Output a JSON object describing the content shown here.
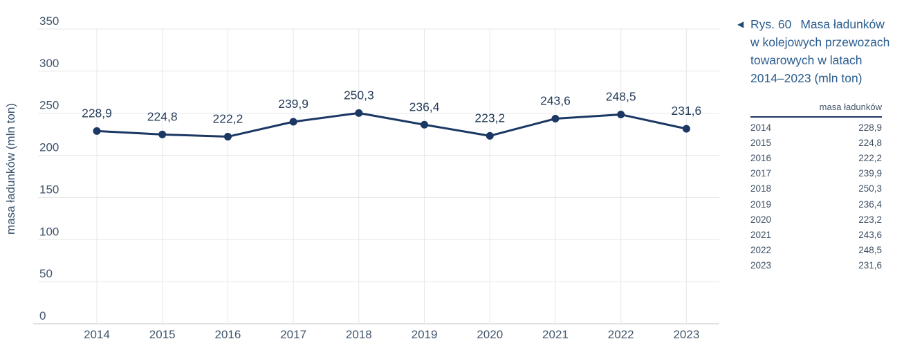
{
  "figure": {
    "marker": "◀",
    "label": "Rys. 60",
    "title": "Masa ładunków w kolejowych przewozach towarowych w latach 2014–2023 (mln ton)"
  },
  "table": {
    "header": "masa ładunków"
  },
  "chart_data": {
    "type": "line",
    "title": "Masa ładunków w kolejowych przewozach towarowych w latach 2014–2023 (mln ton)",
    "categories": [
      "2014",
      "2015",
      "2016",
      "2017",
      "2018",
      "2019",
      "2020",
      "2021",
      "2022",
      "2023"
    ],
    "values": [
      228.9,
      224.8,
      222.2,
      239.9,
      250.3,
      236.4,
      223.2,
      243.6,
      248.5,
      231.6
    ],
    "value_labels": [
      "228,9",
      "224,8",
      "222,2",
      "239,9",
      "250,3",
      "236,4",
      "223,2",
      "243,6",
      "248,5",
      "231,6"
    ],
    "series_name": "masa ładunków",
    "xlabel": "",
    "ylabel": "masa ładunków (mln ton)",
    "ylim": [
      0,
      350
    ],
    "yticks": [
      0,
      50,
      100,
      150,
      200,
      250,
      300,
      350
    ],
    "grid": true,
    "legend": false,
    "colors": {
      "line": "#1b3764",
      "point": "#1b3764",
      "data_label": "#263d5a",
      "tick_label": "#42566c",
      "axis_title": "#35506b",
      "gridline": "#e4e7ea",
      "axis_line": "#ccd2d8"
    }
  }
}
